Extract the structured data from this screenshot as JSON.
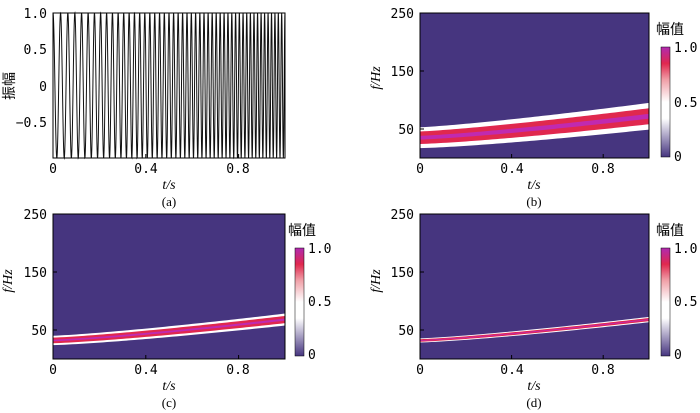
{
  "chart_data": [
    {
      "id": "a",
      "type": "line",
      "caption": "(a)",
      "xlabel": "t/s",
      "ylabel": "振幅",
      "xlim": [
        0,
        1.0
      ],
      "ylim": [
        -1.0,
        1.0
      ],
      "xticks": [
        {
          "v": 0,
          "label": "0"
        },
        {
          "v": 0.4,
          "label": "0.4"
        },
        {
          "v": 0.8,
          "label": "0.8"
        }
      ],
      "yticks": [
        {
          "v": 1.0,
          "label": "1.0"
        },
        {
          "v": 0.5,
          "label": "0.5"
        },
        {
          "v": 0,
          "label": "0"
        },
        {
          "v": -0.5,
          "label": "−0.5"
        }
      ],
      "signal": {
        "kind": "chirp",
        "f0_hz": 30,
        "f1_hz": 70,
        "amplitude": 1.0,
        "duration_s": 1.0
      }
    },
    {
      "id": "b",
      "type": "heatmap",
      "caption": "(b)",
      "xlabel": "t/s",
      "ylabel": "f/Hz",
      "xlim": [
        0,
        1.0
      ],
      "ylim": [
        0,
        250
      ],
      "xticks": [
        {
          "v": 0,
          "label": "0"
        },
        {
          "v": 0.4,
          "label": "0.4"
        },
        {
          "v": 0.8,
          "label": "0.8"
        }
      ],
      "yticks": [
        {
          "v": 250,
          "label": "250"
        },
        {
          "v": 150,
          "label": "150"
        },
        {
          "v": 50,
          "label": "50"
        }
      ],
      "ridge": {
        "f_start_hz": 35,
        "f_end_hz": 72,
        "bandwidth_hz": 20
      },
      "colorbar": {
        "title": "幅值",
        "ticks": [
          {
            "v": 1.0,
            "label": "1.0"
          },
          {
            "v": 0.5,
            "label": "0.5"
          },
          {
            "v": 0,
            "label": "0"
          }
        ]
      }
    },
    {
      "id": "c",
      "type": "heatmap",
      "caption": "(c)",
      "xlabel": "t/s",
      "ylabel": "f/Hz",
      "xlim": [
        0,
        1.0
      ],
      "ylim": [
        0,
        250
      ],
      "xticks": [
        {
          "v": 0,
          "label": "0"
        },
        {
          "v": 0.4,
          "label": "0.4"
        },
        {
          "v": 0.8,
          "label": "0.8"
        }
      ],
      "yticks": [
        {
          "v": 250,
          "label": "250"
        },
        {
          "v": 150,
          "label": "150"
        },
        {
          "v": 50,
          "label": "50"
        }
      ],
      "ridge": {
        "f_start_hz": 32,
        "f_end_hz": 68,
        "bandwidth_hz": 9
      },
      "colorbar": {
        "title": "幅值",
        "ticks": [
          {
            "v": 1.0,
            "label": "1.0"
          },
          {
            "v": 0.5,
            "label": "0.5"
          },
          {
            "v": 0,
            "label": "0"
          }
        ]
      }
    },
    {
      "id": "d",
      "type": "heatmap",
      "caption": "(d)",
      "xlabel": "t/s",
      "ylabel": "f/Hz",
      "xlim": [
        0,
        1.0
      ],
      "ylim": [
        0,
        250
      ],
      "xticks": [
        {
          "v": 0,
          "label": "0"
        },
        {
          "v": 0.4,
          "label": "0.4"
        },
        {
          "v": 0.8,
          "label": "0.8"
        }
      ],
      "yticks": [
        {
          "v": 250,
          "label": "250"
        },
        {
          "v": 150,
          "label": "150"
        },
        {
          "v": 50,
          "label": "50"
        }
      ],
      "ridge": {
        "f_start_hz": 32,
        "f_end_hz": 68,
        "bandwidth_hz": 4
      },
      "colorbar": {
        "title": "幅值",
        "ticks": [
          {
            "v": 1.0,
            "label": "1.0"
          },
          {
            "v": 0.5,
            "label": "0.5"
          },
          {
            "v": 0,
            "label": "0"
          }
        ]
      }
    }
  ],
  "colors": {
    "background": "#46357f",
    "ridge_core": "#e0284e",
    "ridge_peak": "#c02ab0",
    "ridge_edge": "#ffffff",
    "signal": "#111111"
  }
}
